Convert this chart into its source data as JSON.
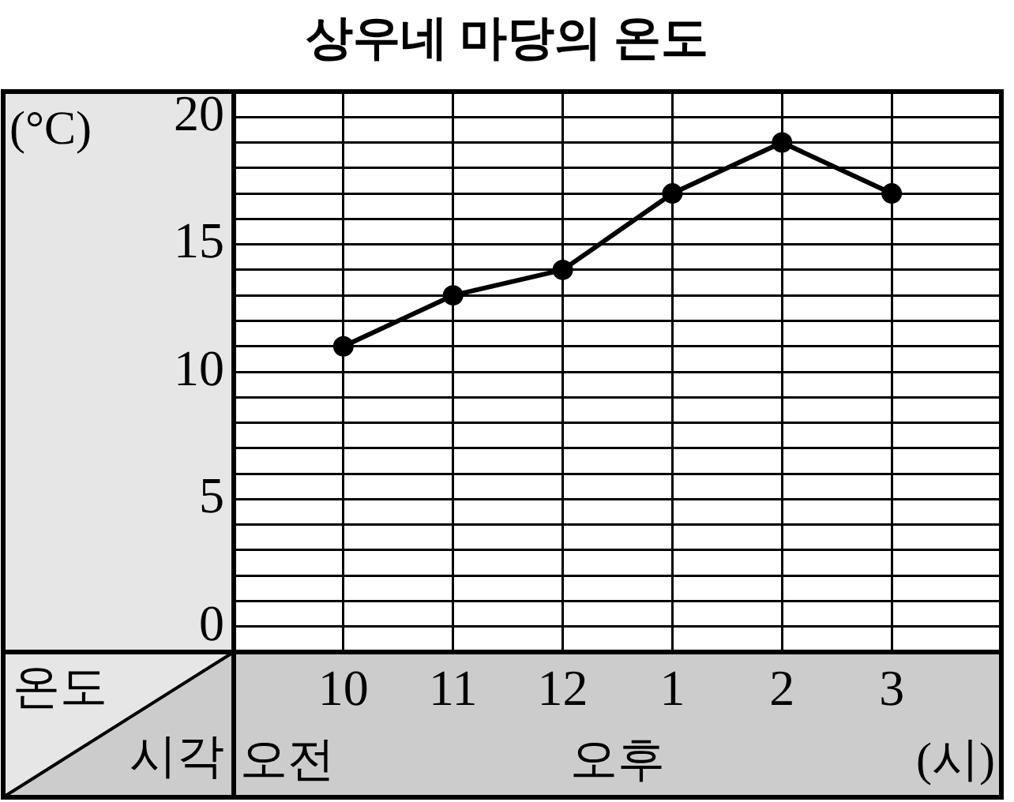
{
  "chart_data": {
    "type": "line",
    "title": "상우네 마당의 온도",
    "xlabel": "시각",
    "ylabel": "온도",
    "annotations": [
      "(°C)",
      "오전",
      "오후",
      "(시)"
    ],
    "categories": [
      "10",
      "11",
      "12",
      "1",
      "2",
      "3"
    ],
    "series": [
      {
        "color": "#000000",
        "values": [
          11,
          13,
          14,
          17,
          19,
          17
        ]
      }
    ],
    "ylim": [
      -1,
      21
    ],
    "yticks": [
      0,
      {
        "value": 1,
        "label": null
      },
      {
        "value": 2,
        "label": null
      },
      {
        "value": 3,
        "label": null
      },
      {
        "value": 4,
        "label": null
      },
      5,
      {
        "value": 6,
        "label": null
      },
      {
        "value": 7,
        "label": null
      },
      {
        "value": 8,
        "label": null
      },
      {
        "value": 9,
        "label": null
      },
      10,
      {
        "value": 11,
        "label": null
      },
      {
        "value": 12,
        "label": null
      },
      {
        "value": 13,
        "label": null
      },
      {
        "value": 14,
        "label": null
      },
      15,
      {
        "value": 16,
        "label": null
      },
      {
        "value": 17,
        "label": null
      },
      {
        "value": 18,
        "label": null
      },
      {
        "value": 19,
        "label": null
      },
      20
    ],
    "grid": true,
    "legend": false,
    "marker": "circle",
    "line_style": "solid"
  }
}
